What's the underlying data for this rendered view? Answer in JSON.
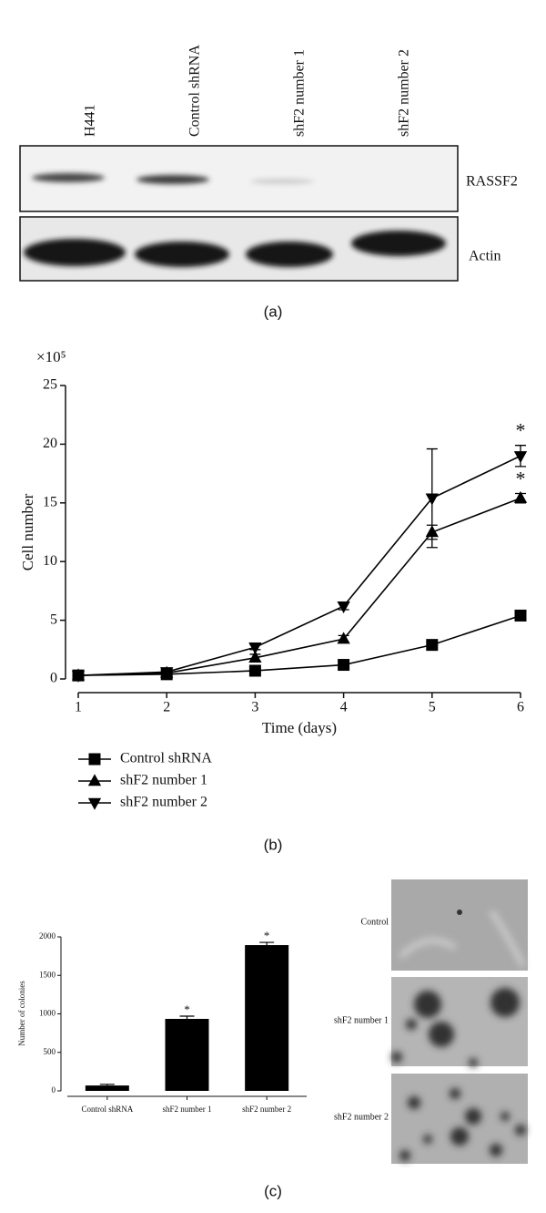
{
  "blot": {
    "lanes": [
      "H441",
      "Control shRNA",
      "shF2 number 1",
      "shF2 number 2"
    ],
    "rows": [
      "RASSF2",
      "Actin"
    ]
  },
  "captions": [
    "(a)",
    "(b)",
    "(c)"
  ],
  "chart_data": [
    {
      "type": "line",
      "y_multiplier": "×10⁵",
      "y_label": "Cell number",
      "x_label": "Time (days)",
      "x": [
        1,
        2,
        3,
        4,
        5,
        6
      ],
      "xlim": [
        1,
        6
      ],
      "xticks": [
        1,
        2,
        3,
        4,
        5,
        6
      ],
      "ylim": [
        0,
        25
      ],
      "yticks": [
        0,
        5,
        10,
        15,
        20,
        25
      ],
      "series": [
        {
          "name": "Control shRNA",
          "color": "#000000",
          "marker": "square",
          "values": [
            0.3,
            0.4,
            0.7,
            1.2,
            2.9,
            5.4
          ],
          "errors": [
            0.1,
            0.1,
            0.1,
            0.2,
            0.3,
            0.4
          ]
        },
        {
          "name": "shF2 number 1",
          "color": "#000000",
          "marker": "triangle-up",
          "values": [
            0.3,
            0.5,
            1.8,
            3.4,
            12.5,
            15.4
          ],
          "errors": [
            0.1,
            0.1,
            0.3,
            0.3,
            0.6,
            0.4
          ]
        },
        {
          "name": "shF2 number 2",
          "color": "#000000",
          "marker": "triangle-down",
          "values": [
            0.3,
            0.6,
            2.7,
            6.2,
            15.4,
            19.0
          ],
          "errors": [
            0.1,
            0.1,
            0.2,
            0.3,
            4.2,
            0.9
          ]
        }
      ],
      "annotations": [
        {
          "series": 2,
          "index": 5,
          "text": "*"
        },
        {
          "series": 1,
          "index": 5,
          "text": "*"
        }
      ]
    },
    {
      "type": "bar",
      "y_label": "Number of colonies",
      "categories": [
        "Control shRNA",
        "shF2 number 1",
        "shF2 number 2"
      ],
      "values": [
        70,
        935,
        1893
      ],
      "errors": [
        15,
        35,
        35
      ],
      "color": "#000000",
      "ylim": [
        0,
        2000
      ],
      "yticks": [
        0,
        500,
        1000,
        1500,
        2000
      ],
      "annotations": [
        {
          "index": 1,
          "text": "*"
        },
        {
          "index": 2,
          "text": "*"
        }
      ]
    }
  ],
  "micrographs": [
    "Control",
    "shF2 number 1",
    "shF2 number 2"
  ]
}
